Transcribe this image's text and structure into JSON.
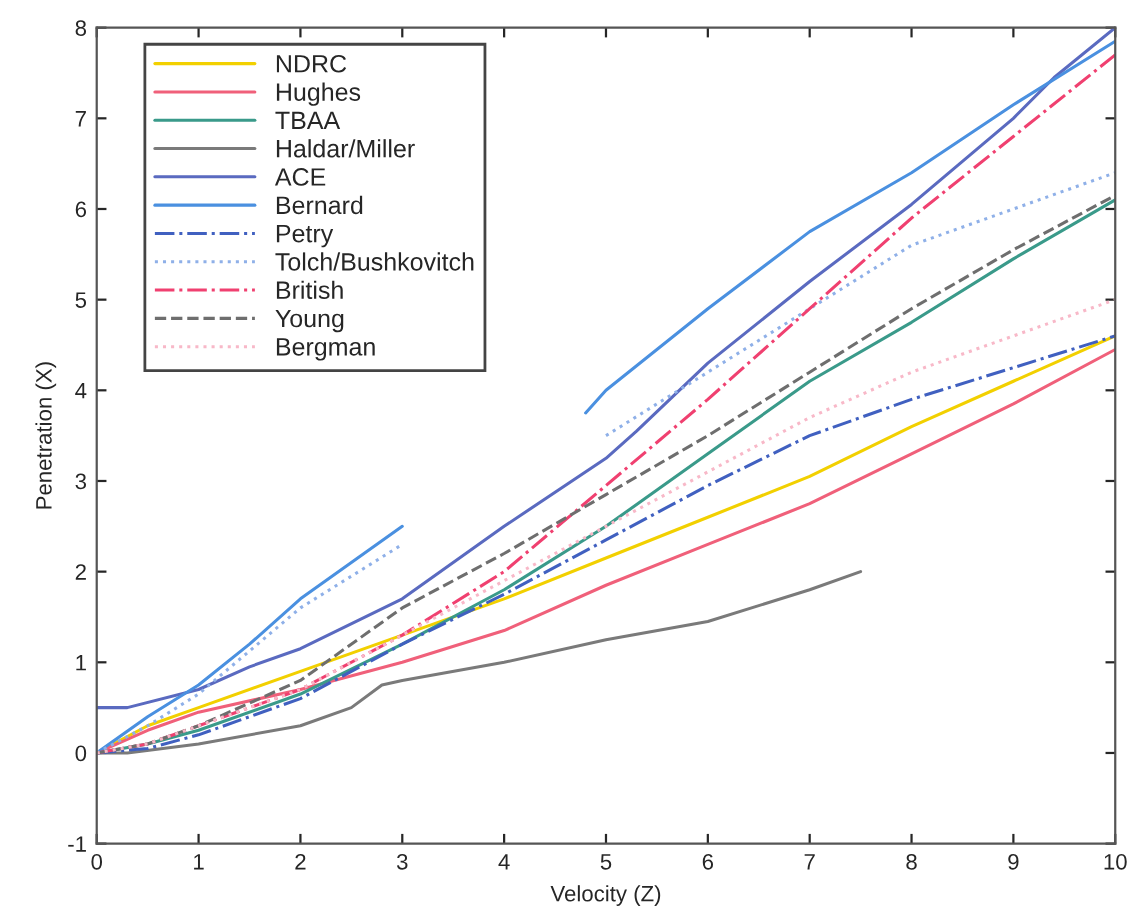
{
  "chart_data": {
    "type": "line",
    "xlabel": "Velocity (Z)",
    "ylabel": "Penetration (X)",
    "xlim": [
      0,
      10
    ],
    "ylim": [
      -1,
      8
    ],
    "xticks": [
      0,
      1,
      2,
      3,
      4,
      5,
      6,
      7,
      8,
      9,
      10
    ],
    "yticks": [
      -1,
      0,
      1,
      2,
      3,
      4,
      5,
      6,
      7,
      8
    ],
    "grid": false,
    "legend": "top left",
    "x": [
      0,
      0.5,
      1,
      2,
      3,
      4,
      5,
      6,
      7,
      8,
      9,
      10
    ],
    "series": [
      {
        "name": "NDRC",
        "color": "#f2d000",
        "line_style": "solid",
        "values": [
          0,
          0.3,
          0.5,
          0.9,
          1.3,
          1.7,
          2.15,
          2.6,
          3.05,
          3.6,
          4.1,
          4.6
        ]
      },
      {
        "name": "Hughes",
        "color": "#f0607a",
        "line_style": "solid",
        "values": [
          0,
          0.25,
          0.45,
          0.7,
          1.0,
          1.35,
          1.85,
          2.3,
          2.75,
          3.3,
          3.85,
          4.45
        ]
      },
      {
        "name": "TBAA",
        "color": "#3a9a8a",
        "line_style": "solid",
        "values": [
          0,
          0.1,
          0.25,
          0.65,
          1.2,
          1.8,
          2.5,
          3.3,
          4.1,
          4.75,
          5.45,
          6.1
        ]
      },
      {
        "name": "Haldar/Miller",
        "color": "#7a7a7a",
        "line_style": "solid",
        "x": [
          0,
          0.3,
          1,
          2,
          2.5,
          2.8,
          3,
          4,
          5,
          6,
          7,
          7.5
        ],
        "values": [
          0,
          0,
          0.1,
          0.3,
          0.5,
          0.75,
          0.8,
          1.0,
          1.25,
          1.45,
          1.8,
          2.0
        ]
      },
      {
        "name": "ACE",
        "color": "#5a6ac0",
        "line_style": "solid",
        "x": [
          0,
          0.3,
          1,
          1.5,
          2,
          3,
          4,
          5,
          5.3,
          6,
          7,
          8,
          9,
          9.4,
          10
        ],
        "values": [
          0.5,
          0.5,
          0.7,
          0.95,
          1.15,
          1.7,
          2.5,
          3.25,
          3.55,
          4.3,
          5.2,
          6.05,
          7.0,
          7.45,
          8.0
        ]
      },
      {
        "name": "Bernard",
        "color": "#4a90e0",
        "line_style": "solid",
        "x": [
          0,
          0.5,
          1,
          1.5,
          2,
          3,
          4,
          4.8,
          5,
          6,
          7,
          8,
          9,
          10
        ],
        "values": [
          0,
          0.4,
          0.75,
          1.2,
          1.7,
          2.5,
          null,
          3.75,
          4.0,
          4.9,
          5.75,
          6.4,
          7.15,
          7.85
        ]
      },
      {
        "name": "Petry",
        "color": "#4060c0",
        "line_style": "dashdot",
        "values": [
          0,
          0.05,
          0.2,
          0.6,
          1.2,
          1.75,
          2.35,
          2.95,
          3.5,
          3.9,
          4.25,
          4.6
        ]
      },
      {
        "name": "Tolch/Bushkovitch",
        "color": "#8fb0e8",
        "line_style": "dotted",
        "values": [
          0,
          0.3,
          0.65,
          1.6,
          2.3,
          null,
          3.5,
          4.2,
          4.9,
          5.6,
          6.0,
          6.4
        ]
      },
      {
        "name": "British",
        "color": "#f04070",
        "line_style": "dashdot",
        "values": [
          0,
          0.1,
          0.3,
          0.7,
          1.3,
          2.0,
          2.95,
          3.9,
          4.9,
          5.9,
          6.8,
          7.7
        ]
      },
      {
        "name": "Young",
        "color": "#6e6e6e",
        "line_style": "dashed",
        "values": [
          0,
          0.1,
          0.3,
          0.8,
          1.6,
          2.2,
          2.85,
          3.5,
          4.2,
          4.9,
          5.55,
          6.15
        ]
      },
      {
        "name": "Bergman",
        "color": "#f8b8c8",
        "line_style": "dotted",
        "values": [
          0,
          0.1,
          0.3,
          0.7,
          1.3,
          1.9,
          2.5,
          3.1,
          3.7,
          4.2,
          4.6,
          5.0
        ]
      }
    ]
  }
}
